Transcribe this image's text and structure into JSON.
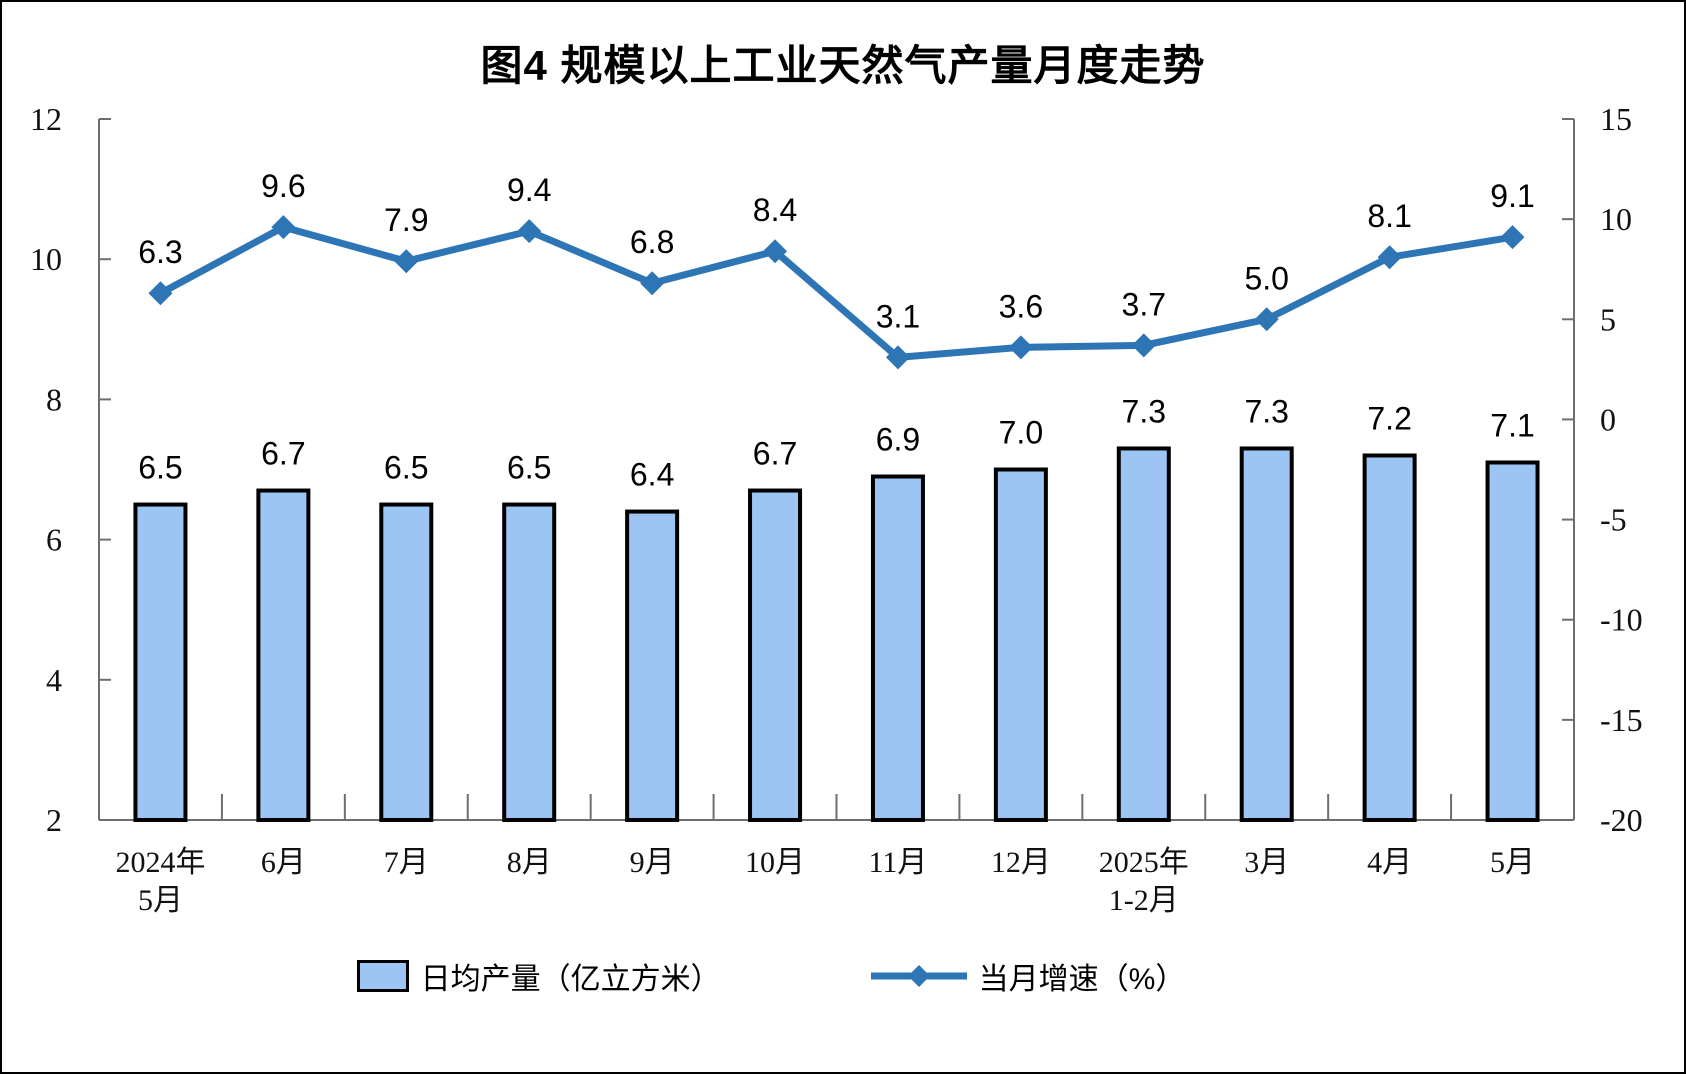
{
  "chart_data": {
    "type": "bar+line",
    "title": "图4 规模以上工业天然气产量月度走势",
    "categories": [
      [
        "2024年",
        "5月"
      ],
      [
        "6月"
      ],
      [
        "7月"
      ],
      [
        "8月"
      ],
      [
        "9月"
      ],
      [
        "10月"
      ],
      [
        "11月"
      ],
      [
        "12月"
      ],
      [
        "2025年",
        "1-2月"
      ],
      [
        "3月"
      ],
      [
        "4月"
      ],
      [
        "5月"
      ]
    ],
    "series": [
      {
        "name": "日均产量（亿立方米）",
        "type": "bar",
        "axis": "left",
        "color": "#9DC5F3",
        "border_color": "#000000",
        "values": [
          6.5,
          6.7,
          6.5,
          6.5,
          6.4,
          6.7,
          6.9,
          7.0,
          7.3,
          7.3,
          7.2,
          7.1
        ]
      },
      {
        "name": "当月增速（%）",
        "type": "line",
        "axis": "right",
        "color": "#2E75B6",
        "marker": "diamond",
        "values": [
          6.3,
          9.6,
          7.9,
          9.4,
          6.8,
          8.4,
          3.1,
          3.6,
          3.7,
          5.0,
          8.1,
          9.1
        ]
      }
    ],
    "left_axis": {
      "min": 2,
      "max": 12,
      "ticks": [
        12,
        10,
        8,
        6,
        4,
        2
      ]
    },
    "right_axis": {
      "min": -20,
      "max": 15,
      "ticks": [
        15,
        10,
        5,
        0,
        -5,
        -10,
        -15,
        -20
      ]
    },
    "grid": false,
    "legend_position": "bottom",
    "axis_color": "#6E6E6E"
  }
}
